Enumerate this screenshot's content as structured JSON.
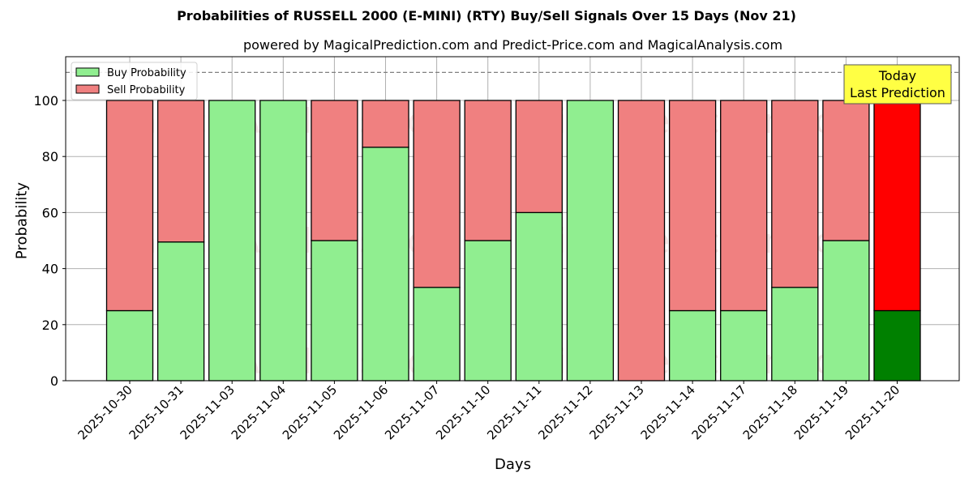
{
  "chart_data": {
    "type": "bar",
    "stacked": true,
    "title": "Probabilities of RUSSELL 2000 (E-MINI) (RTY) Buy/Sell Signals Over 15 Days (Nov 21)",
    "subtitle": "powered by MagicalPrediction.com and Predict-Price.com and MagicalAnalysis.com",
    "xlabel": "Days",
    "ylabel": "Probability",
    "ylim": [
      0,
      115
    ],
    "yticks": [
      0,
      20,
      40,
      60,
      80,
      100
    ],
    "grid": true,
    "reference_line": 110,
    "legend_position": "upper left",
    "categories": [
      "2025-10-30",
      "2025-10-31",
      "2025-11-03",
      "2025-11-04",
      "2025-11-05",
      "2025-11-06",
      "2025-11-07",
      "2025-11-10",
      "2025-11-11",
      "2025-11-12",
      "2025-11-13",
      "2025-11-14",
      "2025-11-17",
      "2025-11-18",
      "2025-11-19",
      "2025-11-20"
    ],
    "series": [
      {
        "name": "Buy Probability",
        "color": "#90ee90",
        "values": [
          25,
          49.5,
          100,
          100,
          50,
          83.3,
          33.3,
          50,
          60,
          100,
          0,
          25,
          25,
          33.3,
          50,
          25
        ]
      },
      {
        "name": "Sell Probability",
        "color": "#f08080",
        "values": [
          75,
          50.5,
          0,
          0,
          50,
          16.7,
          66.7,
          50,
          40,
          0,
          100,
          75,
          75,
          66.7,
          50,
          75
        ]
      }
    ],
    "highlight": {
      "index": 15,
      "buy_color": "#008000",
      "sell_color": "#ff0000"
    },
    "annotation": {
      "text_line1": "Today",
      "text_line2": "Last Prediction",
      "color": "#ffff44"
    },
    "watermarks": [
      "MagicalAnalysis.com",
      "MagicalPrediction.com"
    ]
  }
}
